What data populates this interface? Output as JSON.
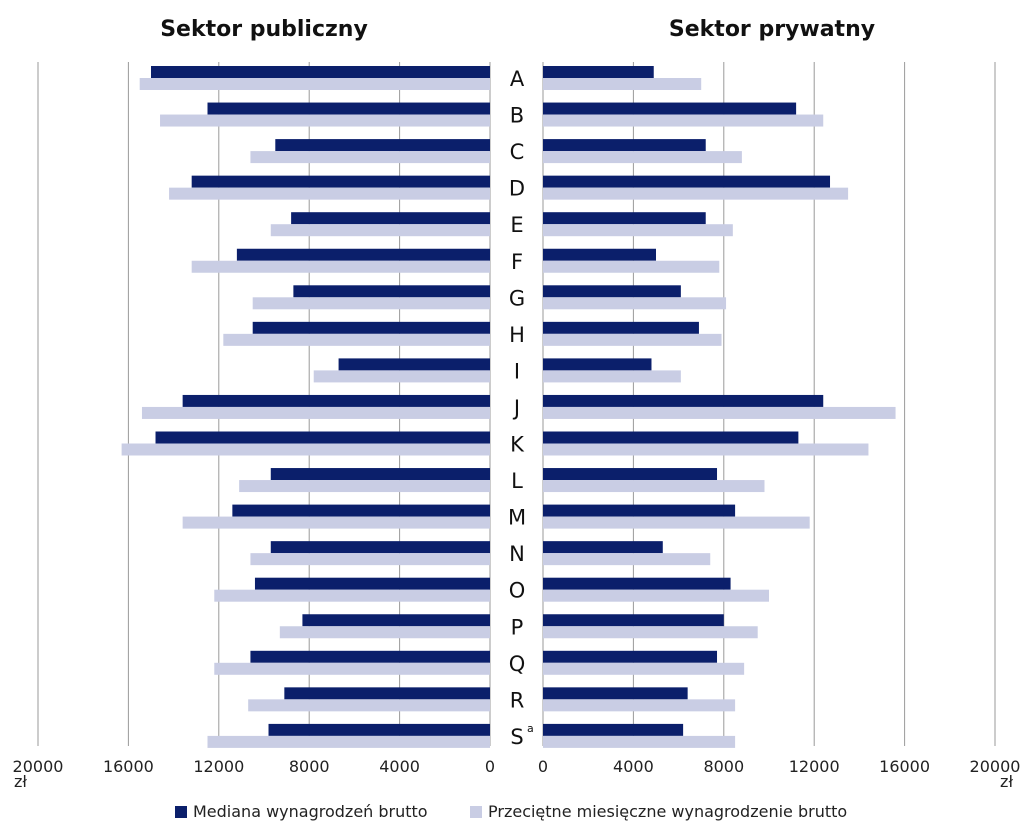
{
  "chart_data": {
    "type": "bar",
    "orientation": "horizontal",
    "layout": "back-to-back",
    "panels": [
      {
        "title": "Sektor publiczny",
        "direction": "left"
      },
      {
        "title": "Sektor prywatny",
        "direction": "right"
      }
    ],
    "categories": [
      "A",
      "B",
      "C",
      "D",
      "E",
      "F",
      "G",
      "H",
      "I",
      "J",
      "K",
      "L",
      "M",
      "N",
      "O",
      "P",
      "Q",
      "R",
      "S"
    ],
    "category_superscripts": {
      "S": "a"
    },
    "series_names": [
      "Mediana wynagrodzeń brutto",
      "Przeciętne miesięczne wynagrodzenie brutto"
    ],
    "colors": {
      "median": "#0b1f6b",
      "average": "#c9cde4"
    },
    "public": {
      "median": [
        15000,
        12500,
        9500,
        13200,
        8800,
        11200,
        8700,
        10500,
        6700,
        13600,
        14800,
        9700,
        11400,
        9700,
        10400,
        8300,
        10600,
        9100,
        9800
      ],
      "average": [
        15500,
        14600,
        10600,
        14200,
        9700,
        13200,
        10500,
        11800,
        7800,
        15400,
        16300,
        11100,
        13600,
        10600,
        12200,
        9300,
        12200,
        10700,
        12500
      ]
    },
    "private": {
      "median": [
        4900,
        11200,
        7200,
        12700,
        7200,
        5000,
        6100,
        6900,
        4800,
        12400,
        11300,
        7700,
        8500,
        5300,
        8300,
        8000,
        7700,
        6400,
        6200
      ],
      "average": [
        7000,
        12400,
        8800,
        13500,
        8400,
        7800,
        8100,
        7900,
        6100,
        15600,
        14400,
        9800,
        11800,
        7400,
        10000,
        9500,
        8900,
        8500,
        8500
      ]
    },
    "ticks": [
      20000,
      16000,
      12000,
      8000,
      4000,
      0
    ],
    "ticks_private": [
      0,
      4000,
      8000,
      12000,
      16000,
      20000
    ],
    "tick_labels": [
      "20000",
      "16000",
      "12000",
      "8000",
      "4000",
      "0"
    ],
    "tick_labels_private": [
      "0",
      "4000",
      "8000",
      "12000",
      "16000",
      "20000"
    ],
    "unit": "zł",
    "xlim": [
      0,
      20000
    ],
    "grid": true,
    "legend_position": "bottom"
  }
}
